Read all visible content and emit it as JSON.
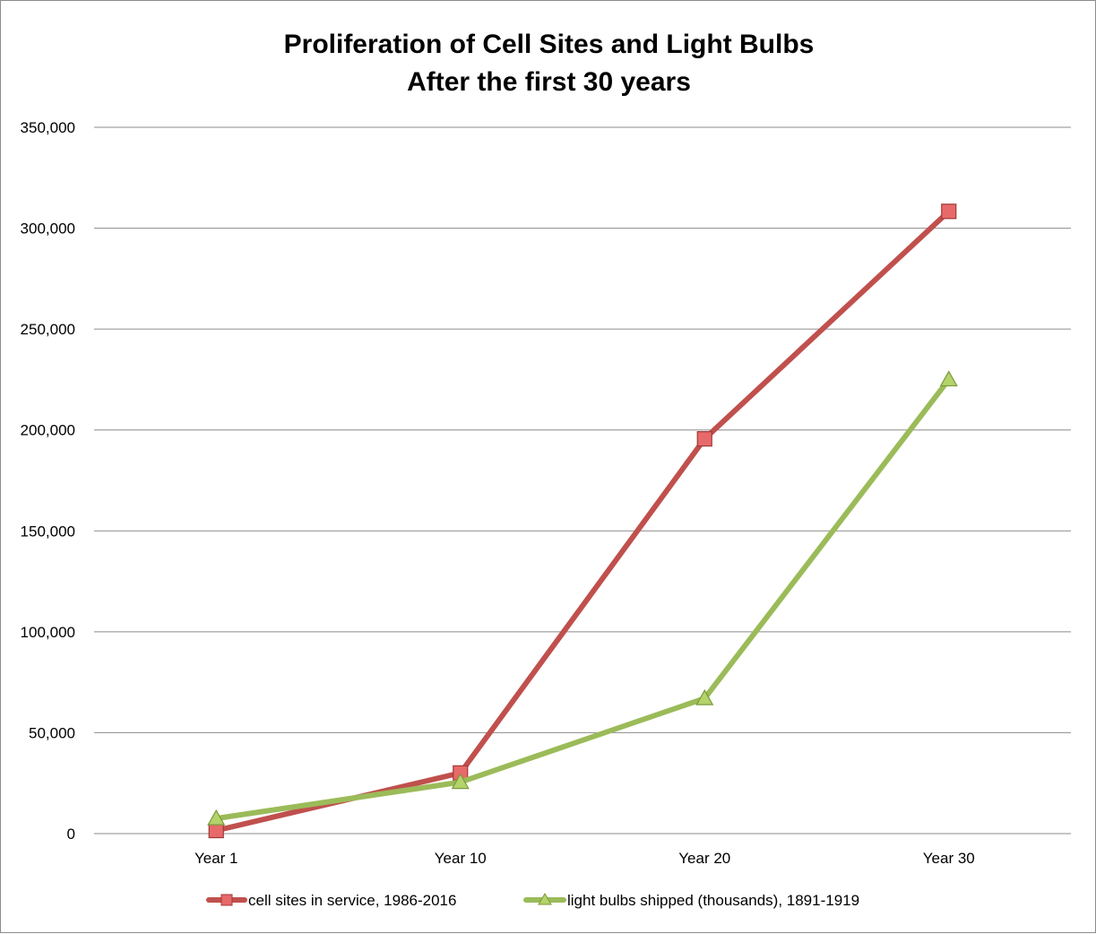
{
  "chart_data": {
    "type": "line",
    "title_line1": "Proliferation of Cell Sites and Light Bulbs",
    "title_line2": "After the first 30 years",
    "categories": [
      "Year 1",
      "Year 10",
      "Year 20",
      "Year 30"
    ],
    "ylim": [
      0,
      350000
    ],
    "yticks": [
      0,
      50000,
      100000,
      150000,
      200000,
      250000,
      300000,
      350000
    ],
    "ytick_labels": [
      "0",
      "50,000",
      "100,000",
      "150,000",
      "200,000",
      "250,000",
      "300,000",
      "350,000"
    ],
    "grid": true,
    "legend_position": "bottom",
    "series": [
      {
        "name": "cell sites in service, 1986-2016",
        "values": [
          1531,
          30045,
          195613,
          308334
        ],
        "color": "#c0504d",
        "marker": "square"
      },
      {
        "name": "light bulbs shipped (thousands), 1891-1919",
        "values": [
          7500,
          25500,
          67000,
          225000
        ],
        "color": "#9bbb59",
        "marker": "triangle"
      }
    ]
  }
}
